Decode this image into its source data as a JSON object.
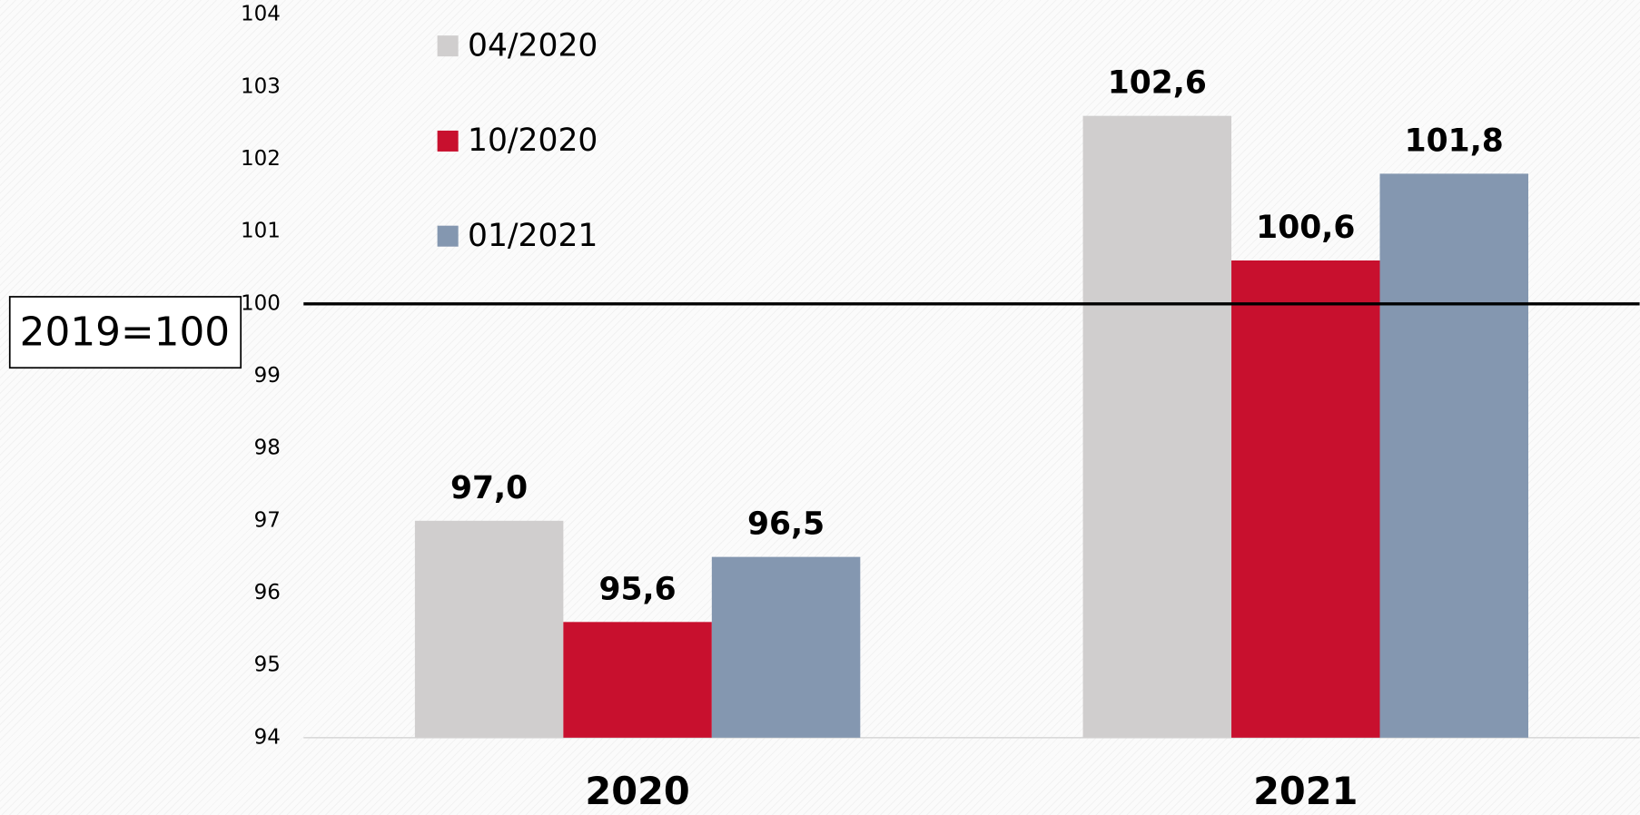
{
  "chart_data": {
    "type": "bar",
    "categories": [
      "2020",
      "2021"
    ],
    "series": [
      {
        "name": "04/2020",
        "color": "#d0cece",
        "values": [
          97.0,
          102.6
        ],
        "value_labels": [
          "97,0",
          "102,6"
        ]
      },
      {
        "name": "10/2020",
        "color": "#c8102e",
        "values": [
          95.6,
          100.6
        ],
        "value_labels": [
          "95,6",
          "100,6"
        ]
      },
      {
        "name": "01/2021",
        "color": "#8497b0",
        "values": [
          96.5,
          101.8
        ],
        "value_labels": [
          "96,5",
          "101,8"
        ]
      }
    ],
    "ylim": [
      94,
      104
    ],
    "yticks": [
      94,
      95,
      96,
      97,
      98,
      99,
      100,
      101,
      102,
      103,
      104
    ],
    "reference_line": 100,
    "annotation": "2019=100",
    "legend": "top-left"
  }
}
